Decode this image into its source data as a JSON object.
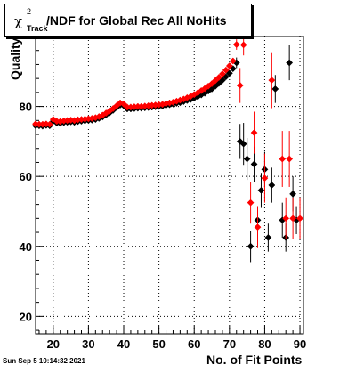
{
  "title": {
    "symbol": "χ",
    "superscript": "2",
    "subscript": "Track",
    "text": "/NDF for Global Rec All NoHits"
  },
  "timestamp": "Sun Sep  5 10:14:32 2021",
  "chart_data": {
    "type": "scatter",
    "title": "χ²_Track/NDF for Global Rec All NoHits",
    "xlabel": "No. of Fit Points",
    "ylabel": "Quality",
    "xlim": [
      15,
      91
    ],
    "ylim": [
      15,
      100
    ],
    "x_ticks": [
      20,
      30,
      40,
      50,
      60,
      70,
      80,
      90
    ],
    "y_ticks": [
      20,
      40,
      60,
      80
    ],
    "grid": true,
    "series": [
      {
        "color": "#000000",
        "x": [
          15,
          16,
          17,
          18,
          19,
          20,
          21,
          22,
          23,
          24,
          25,
          26,
          27,
          28,
          29,
          30,
          31,
          32,
          33,
          34,
          35,
          36,
          37,
          38,
          39,
          40,
          41,
          42,
          43,
          44,
          45,
          46,
          47,
          48,
          49,
          50,
          51,
          52,
          53,
          54,
          55,
          56,
          57,
          58,
          59,
          60,
          61,
          62,
          63,
          64,
          65,
          66,
          67,
          68,
          69,
          70,
          71,
          72,
          73,
          74,
          75,
          76,
          77,
          78,
          79,
          80,
          81,
          82,
          83,
          84,
          85,
          86,
          87,
          88,
          89,
          90
        ],
        "y": [
          74.5,
          74.5,
          74.4,
          74.6,
          74.5,
          75.8,
          75.3,
          75.2,
          75.4,
          75.5,
          75.6,
          75.5,
          75.7,
          75.8,
          75.9,
          76.0,
          76.1,
          76.3,
          76.6,
          77.0,
          77.6,
          78.2,
          78.9,
          79.7,
          80.4,
          80.2,
          79.3,
          79.3,
          79.4,
          79.5,
          79.5,
          79.6,
          79.7,
          79.8,
          79.9,
          80.0,
          80.1,
          80.3,
          80.5,
          80.7,
          80.9,
          81.1,
          81.4,
          81.7,
          82.0,
          82.4,
          82.8,
          83.3,
          83.8,
          84.4,
          85.0,
          85.8,
          86.6,
          87.5,
          88.5,
          89.5,
          90.8,
          92.5,
          70.0,
          69.3,
          65.0,
          40.0,
          63.5,
          47.5,
          56.0,
          62.0,
          42.5,
          57.5,
          85.0,
          null,
          47.5,
          42.5,
          92.5,
          55.0,
          47.5,
          null
        ],
        "y_err": [
          0.3,
          0.3,
          0.3,
          0.3,
          0.3,
          0.3,
          0.3,
          0.3,
          0.3,
          0.3,
          0.3,
          0.3,
          0.3,
          0.3,
          0.3,
          0.3,
          0.3,
          0.3,
          0.3,
          0.3,
          0.3,
          0.3,
          0.3,
          0.3,
          0.3,
          0.3,
          0.3,
          0.3,
          0.3,
          0.3,
          0.3,
          0.3,
          0.3,
          0.3,
          0.3,
          0.3,
          0.3,
          0.3,
          0.3,
          0.3,
          0.3,
          0.3,
          0.3,
          0.3,
          0.3,
          0.3,
          0.3,
          0.3,
          0.3,
          0.3,
          0.3,
          0.3,
          0.4,
          0.4,
          0.5,
          0.6,
          0.8,
          1.5,
          5.0,
          6.0,
          6.0,
          4.5,
          5.0,
          4.0,
          5.0,
          5.0,
          4.0,
          5.0,
          4.0,
          null,
          5.0,
          4.0,
          5.0,
          5.0,
          4.0,
          null
        ]
      },
      {
        "color": "#ff0000",
        "x": [
          15,
          16,
          17,
          18,
          19,
          20,
          21,
          22,
          23,
          24,
          25,
          26,
          27,
          28,
          29,
          30,
          31,
          32,
          33,
          34,
          35,
          36,
          37,
          38,
          39,
          40,
          41,
          42,
          43,
          44,
          45,
          46,
          47,
          48,
          49,
          50,
          51,
          52,
          53,
          54,
          55,
          56,
          57,
          58,
          59,
          60,
          61,
          62,
          63,
          64,
          65,
          66,
          67,
          68,
          69,
          70,
          71,
          72,
          73,
          74,
          75,
          76,
          77,
          78,
          79,
          80,
          81,
          82,
          83,
          84,
          85,
          86,
          87,
          88,
          89,
          90
        ],
        "y": [
          75.0,
          74.9,
          74.9,
          75.0,
          74.9,
          76.3,
          75.8,
          75.7,
          75.9,
          76.0,
          76.1,
          76.0,
          76.2,
          76.3,
          76.4,
          76.5,
          76.6,
          76.8,
          77.1,
          77.5,
          78.1,
          78.7,
          79.4,
          80.2,
          81.0,
          80.7,
          79.8,
          79.8,
          79.9,
          80.0,
          80.0,
          80.1,
          80.2,
          80.3,
          80.4,
          80.5,
          80.6,
          80.8,
          81.0,
          81.2,
          81.5,
          81.8,
          82.1,
          82.5,
          82.9,
          83.4,
          83.9,
          84.5,
          85.1,
          85.8,
          86.5,
          87.4,
          88.3,
          89.3,
          90.4,
          91.6,
          93.0,
          97.7,
          86.0,
          97.6,
          null,
          52.5,
          72.5,
          45.5,
          null,
          59.5,
          null,
          87.5,
          null,
          null,
          65.0,
          48.0,
          65.0,
          48.0,
          null,
          48.0
        ],
        "y_err": [
          0.3,
          0.3,
          0.3,
          0.3,
          0.3,
          0.3,
          0.3,
          0.3,
          0.3,
          0.3,
          0.3,
          0.3,
          0.3,
          0.3,
          0.3,
          0.3,
          0.3,
          0.3,
          0.3,
          0.3,
          0.3,
          0.3,
          0.3,
          0.3,
          0.3,
          0.3,
          0.3,
          0.3,
          0.3,
          0.3,
          0.3,
          0.3,
          0.3,
          0.3,
          0.3,
          0.3,
          0.3,
          0.3,
          0.3,
          0.3,
          0.3,
          0.3,
          0.3,
          0.3,
          0.3,
          0.3,
          0.3,
          0.3,
          0.3,
          0.3,
          0.3,
          0.3,
          0.4,
          0.4,
          0.5,
          0.6,
          0.8,
          1.5,
          5.0,
          3.0,
          null,
          6.0,
          6.0,
          6.0,
          null,
          7.0,
          null,
          8.0,
          null,
          null,
          8.0,
          6.0,
          8.0,
          6.0,
          null,
          6.0
        ]
      }
    ]
  }
}
